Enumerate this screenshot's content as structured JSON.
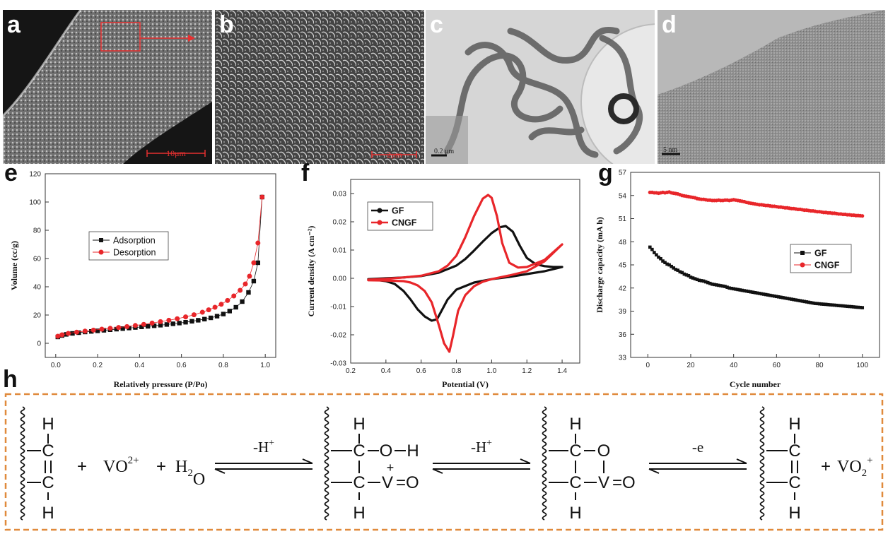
{
  "panels": {
    "a": {
      "letter": "a",
      "scale_label": "10μm"
    },
    "b": {
      "letter": "b",
      "scale_label": "2μm"
    },
    "c": {
      "letter": "c",
      "scale_label": "0.2 μm"
    },
    "d": {
      "letter": "d",
      "scale_label": "5 nm"
    },
    "e": {
      "letter": "e"
    },
    "f": {
      "letter": "f"
    },
    "g": {
      "letter": "g"
    },
    "h": {
      "letter": "h"
    }
  },
  "colors": {
    "black_series": "#111111",
    "red_series": "#e8262a",
    "dashed_border": "#e08a3c",
    "annotation_red": "#e53030"
  },
  "chart_data": [
    {
      "id": "e",
      "type": "scatter",
      "xlabel": "Relatively pressure (P/Po)",
      "ylabel": "Volume (cc/g)",
      "xlim": [
        -0.05,
        1.05
      ],
      "ylim": [
        -10,
        120
      ],
      "xticks": [
        0.0,
        0.2,
        0.4,
        0.6,
        0.8,
        1.0
      ],
      "xtick_labels": [
        "0.0",
        "0.2",
        "0.4",
        "0.6",
        "0.8",
        "1.0"
      ],
      "yticks": [
        0,
        20,
        40,
        60,
        80,
        100,
        120
      ],
      "ytick_labels": [
        "0",
        "20",
        "40",
        "60",
        "80",
        "100",
        "120"
      ],
      "legend_position": "center-left",
      "series": [
        {
          "name": "Adsorption",
          "color": "#111111",
          "marker": "square",
          "x": [
            0.01,
            0.03,
            0.05,
            0.08,
            0.11,
            0.14,
            0.17,
            0.2,
            0.23,
            0.26,
            0.29,
            0.32,
            0.35,
            0.38,
            0.41,
            0.44,
            0.47,
            0.5,
            0.53,
            0.56,
            0.59,
            0.62,
            0.65,
            0.68,
            0.71,
            0.74,
            0.77,
            0.8,
            0.83,
            0.86,
            0.89,
            0.92,
            0.945,
            0.965,
            0.985
          ],
          "y": [
            4.5,
            5.5,
            6.3,
            7.0,
            7.5,
            8.0,
            8.4,
            8.8,
            9.2,
            9.6,
            10.0,
            10.4,
            10.8,
            11.2,
            11.6,
            12.0,
            12.4,
            12.8,
            13.3,
            13.8,
            14.3,
            14.9,
            15.6,
            16.3,
            17.1,
            18.0,
            19.2,
            20.7,
            22.8,
            25.5,
            29.5,
            36.0,
            44.0,
            57.0,
            103.5
          ]
        },
        {
          "name": "Desorption",
          "color": "#e8262a",
          "marker": "circle",
          "x": [
            0.01,
            0.03,
            0.06,
            0.1,
            0.14,
            0.18,
            0.22,
            0.26,
            0.3,
            0.34,
            0.38,
            0.42,
            0.46,
            0.5,
            0.54,
            0.58,
            0.62,
            0.66,
            0.7,
            0.73,
            0.76,
            0.79,
            0.82,
            0.85,
            0.88,
            0.905,
            0.925,
            0.945,
            0.965,
            0.985
          ],
          "y": [
            5.0,
            6.0,
            7.0,
            7.9,
            8.6,
            9.3,
            10.0,
            10.6,
            11.2,
            11.8,
            12.6,
            13.4,
            14.3,
            15.3,
            16.3,
            17.4,
            18.7,
            20.2,
            22.0,
            23.7,
            25.5,
            27.6,
            30.3,
            33.5,
            37.5,
            42.0,
            47.5,
            57.0,
            71.0,
            103.5
          ]
        }
      ]
    },
    {
      "id": "f",
      "type": "line",
      "xlabel": "Potential (V)",
      "ylabel": "Current density (A cm⁻²)",
      "xlim": [
        0.2,
        1.5
      ],
      "ylim": [
        -0.03,
        0.035
      ],
      "xticks": [
        0.2,
        0.4,
        0.6,
        0.8,
        1.0,
        1.2,
        1.4
      ],
      "xtick_labels": [
        "0.2",
        "0.4",
        "0.6",
        "0.8",
        "1.0",
        "1.2",
        "1.4"
      ],
      "yticks": [
        -0.03,
        -0.02,
        -0.01,
        0.0,
        0.01,
        0.02,
        0.03
      ],
      "ytick_labels": [
        "-0.03",
        "-0.02",
        "-0.01",
        "0.00",
        "0.01",
        "0.02",
        "0.03"
      ],
      "legend_position": "top-left",
      "series": [
        {
          "name": "GF",
          "color": "#111111",
          "x": [
            0.3,
            0.4,
            0.5,
            0.6,
            0.7,
            0.8,
            0.85,
            0.9,
            0.95,
            1.0,
            1.05,
            1.08,
            1.12,
            1.16,
            1.2,
            1.25,
            1.3,
            1.35,
            1.4,
            1.3,
            1.2,
            1.1,
            1.0,
            0.9,
            0.8,
            0.75,
            0.72,
            0.69,
            0.66,
            0.62,
            0.58,
            0.54,
            0.5,
            0.45,
            0.4,
            0.35,
            0.3
          ],
          "y": [
            -0.0003,
            0.0,
            0.0003,
            0.0008,
            0.002,
            0.0045,
            0.0068,
            0.0098,
            0.013,
            0.016,
            0.0181,
            0.0185,
            0.0165,
            0.0115,
            0.0072,
            0.005,
            0.0043,
            0.004,
            0.004,
            0.0025,
            0.0015,
            0.0005,
            -0.0003,
            -0.0015,
            -0.004,
            -0.0075,
            -0.011,
            -0.0145,
            -0.015,
            -0.0135,
            -0.011,
            -0.0075,
            -0.0045,
            -0.002,
            -0.001,
            -0.0006,
            -0.0005
          ]
        },
        {
          "name": "CNGF",
          "color": "#e8262a",
          "x": [
            0.3,
            0.4,
            0.5,
            0.6,
            0.7,
            0.75,
            0.8,
            0.85,
            0.9,
            0.95,
            0.98,
            1.0,
            1.03,
            1.06,
            1.1,
            1.15,
            1.2,
            1.3,
            1.4,
            1.3,
            1.2,
            1.1,
            1.0,
            0.95,
            0.9,
            0.85,
            0.81,
            0.78,
            0.76,
            0.73,
            0.7,
            0.66,
            0.62,
            0.58,
            0.54,
            0.5,
            0.4,
            0.3
          ],
          "y": [
            -0.0005,
            -0.0002,
            0.0003,
            0.0009,
            0.0025,
            0.0045,
            0.008,
            0.0145,
            0.022,
            0.0282,
            0.0295,
            0.0285,
            0.022,
            0.0125,
            0.0055,
            0.0038,
            0.004,
            0.0065,
            0.012,
            0.006,
            0.0025,
            0.001,
            -0.0003,
            -0.0012,
            -0.0028,
            -0.006,
            -0.0115,
            -0.0205,
            -0.026,
            -0.023,
            -0.0165,
            -0.0085,
            -0.0045,
            -0.0025,
            -0.0015,
            -0.001,
            -0.0008,
            -0.0007
          ]
        }
      ]
    },
    {
      "id": "g",
      "type": "scatter",
      "xlabel": "Cycle number",
      "ylabel": "Discharge capacity (mA h)",
      "xlim": [
        -8,
        108
      ],
      "ylim": [
        33,
        57
      ],
      "xticks": [
        0,
        20,
        40,
        60,
        80,
        100
      ],
      "xtick_labels": [
        "0",
        "20",
        "40",
        "60",
        "80",
        "100"
      ],
      "yticks": [
        33,
        36,
        39,
        42,
        45,
        48,
        51,
        54,
        57
      ],
      "ytick_labels": [
        "33",
        "36",
        "39",
        "42",
        "45",
        "48",
        "51",
        "54",
        "57"
      ],
      "legend_position": "center-right",
      "series": [
        {
          "name": "GF",
          "color": "#111111",
          "marker": "square",
          "x": [
            1,
            2,
            3,
            4,
            5,
            6,
            7,
            8,
            9,
            10,
            11,
            12,
            13,
            14,
            15,
            16,
            17,
            18,
            19,
            20,
            21,
            22,
            23,
            24,
            25,
            26,
            27,
            28,
            29,
            30,
            31,
            32,
            33,
            34,
            35,
            36,
            37,
            38,
            39,
            40,
            41,
            42,
            43,
            44,
            45,
            46,
            47,
            48,
            49,
            50,
            51,
            52,
            53,
            54,
            55,
            56,
            57,
            58,
            59,
            60,
            61,
            62,
            63,
            64,
            65,
            66,
            67,
            68,
            69,
            70,
            71,
            72,
            73,
            74,
            75,
            76,
            77,
            78,
            79,
            80,
            81,
            82,
            83,
            84,
            85,
            86,
            87,
            88,
            89,
            90,
            91,
            92,
            93,
            94,
            95,
            96,
            97,
            98,
            99,
            100
          ],
          "y": [
            47.3,
            47.0,
            46.6,
            46.3,
            46.0,
            45.8,
            45.5,
            45.3,
            45.1,
            45.0,
            44.8,
            44.6,
            44.4,
            44.3,
            44.1,
            44.0,
            43.8,
            43.7,
            43.6,
            43.4,
            43.3,
            43.2,
            43.1,
            43.0,
            42.95,
            42.9,
            42.8,
            42.7,
            42.6,
            42.5,
            42.45,
            42.4,
            42.35,
            42.3,
            42.25,
            42.2,
            42.1,
            42.0,
            41.95,
            41.9,
            41.85,
            41.8,
            41.75,
            41.7,
            41.65,
            41.6,
            41.55,
            41.5,
            41.45,
            41.4,
            41.35,
            41.3,
            41.25,
            41.2,
            41.15,
            41.1,
            41.05,
            41.0,
            40.95,
            40.9,
            40.85,
            40.8,
            40.75,
            40.7,
            40.65,
            40.6,
            40.55,
            40.5,
            40.45,
            40.4,
            40.35,
            40.3,
            40.25,
            40.2,
            40.15,
            40.1,
            40.05,
            40.0,
            39.98,
            39.95,
            39.92,
            39.9,
            39.88,
            39.85,
            39.82,
            39.8,
            39.78,
            39.75,
            39.72,
            39.7,
            39.68,
            39.65,
            39.62,
            39.6,
            39.58,
            39.55,
            39.52,
            39.5,
            39.48,
            39.45
          ]
        },
        {
          "name": "CNGF",
          "color": "#e8262a",
          "marker": "circle",
          "x": [
            1,
            2,
            3,
            4,
            5,
            6,
            7,
            8,
            9,
            10,
            11,
            12,
            13,
            14,
            15,
            16,
            17,
            18,
            19,
            20,
            21,
            22,
            23,
            24,
            25,
            26,
            27,
            28,
            29,
            30,
            31,
            32,
            33,
            34,
            35,
            36,
            37,
            38,
            39,
            40,
            41,
            42,
            43,
            44,
            45,
            46,
            47,
            48,
            49,
            50,
            51,
            52,
            53,
            54,
            55,
            56,
            57,
            58,
            59,
            60,
            61,
            62,
            63,
            64,
            65,
            66,
            67,
            68,
            69,
            70,
            71,
            72,
            73,
            74,
            75,
            76,
            77,
            78,
            79,
            80,
            81,
            82,
            83,
            84,
            85,
            86,
            87,
            88,
            89,
            90,
            91,
            92,
            93,
            94,
            95,
            96,
            97,
            98,
            99,
            100
          ],
          "y": [
            54.4,
            54.4,
            54.35,
            54.35,
            54.3,
            54.35,
            54.4,
            54.35,
            54.4,
            54.45,
            54.35,
            54.3,
            54.25,
            54.2,
            54.1,
            54.0,
            53.95,
            53.9,
            53.85,
            53.8,
            53.75,
            53.7,
            53.6,
            53.55,
            53.5,
            53.5,
            53.45,
            53.4,
            53.4,
            53.35,
            53.35,
            53.35,
            53.4,
            53.35,
            53.35,
            53.4,
            53.4,
            53.35,
            53.4,
            53.45,
            53.4,
            53.35,
            53.3,
            53.25,
            53.2,
            53.1,
            53.05,
            53.0,
            52.95,
            52.9,
            52.85,
            52.8,
            52.8,
            52.75,
            52.7,
            52.7,
            52.65,
            52.6,
            52.6,
            52.55,
            52.5,
            52.5,
            52.45,
            52.4,
            52.4,
            52.35,
            52.3,
            52.3,
            52.25,
            52.2,
            52.2,
            52.15,
            52.1,
            52.1,
            52.05,
            52.0,
            52.0,
            51.95,
            51.9,
            51.9,
            51.85,
            51.8,
            51.8,
            51.75,
            51.75,
            51.7,
            51.7,
            51.65,
            51.6,
            51.6,
            51.55,
            51.55,
            51.5,
            51.5,
            51.45,
            51.45,
            51.4,
            51.4,
            51.38,
            51.35
          ]
        }
      ]
    }
  ],
  "scheme": {
    "atoms": {
      "H": "H",
      "C": "C",
      "O": "O",
      "V": "V"
    },
    "vo2plus_base": "VO",
    "vo2plus_sup": "2+",
    "h2o_base": "H",
    "h2o_sub": "2",
    "h2o_end": "O",
    "plus": "+",
    "arrow1_label": "-H",
    "arrow1_sup": "+",
    "arrow2_label": "-H",
    "arrow2_sup": "+",
    "arrow3_label": "-e",
    "vanadyl_charge": "+",
    "vo2_product_base": "VO",
    "vo2_product_sub": "2",
    "vo2_product_sup": "+",
    "double_bond_o": "=O"
  }
}
